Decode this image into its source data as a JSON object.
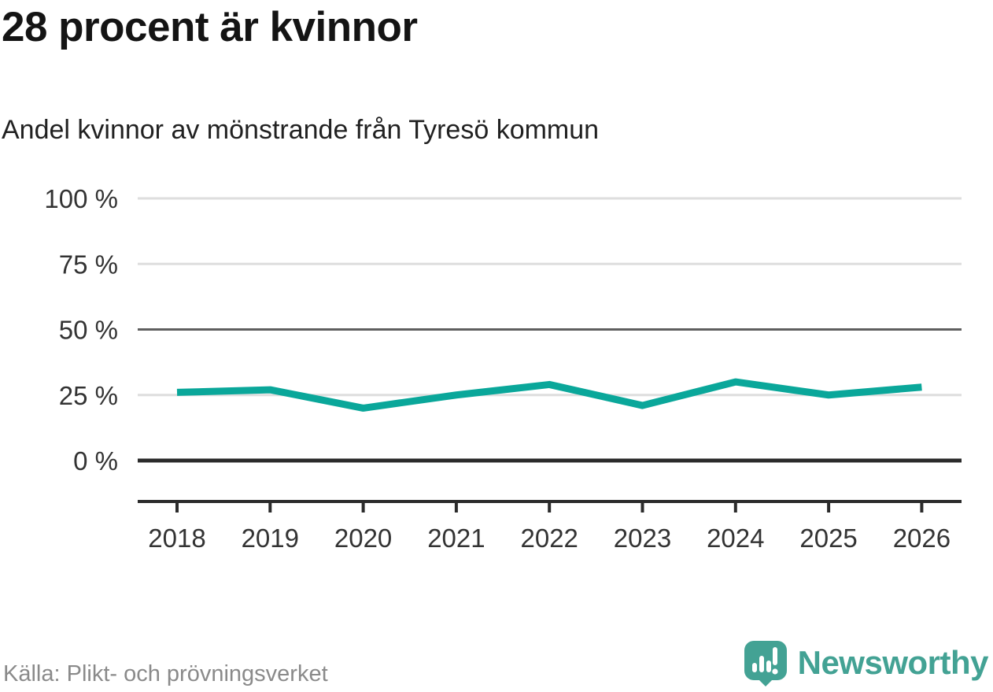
{
  "header": {
    "title": "28 procent är kvinnor",
    "subtitle": "Andel kvinnor av mönstrande från Tyresö kommun"
  },
  "footer": {
    "source": "Källa: Plikt- och prövningsverket",
    "brand": "Newsworthy",
    "logo_icon": "bar-chart-speech-bubble-icon"
  },
  "colors": {
    "line": "#0aa79a",
    "brand": "#43a294",
    "grid_light": "#dedede",
    "grid_mid": "#5f5f5f",
    "axis_dark": "#2b2b2b",
    "title_text": "#141414",
    "tick_text": "#333333",
    "muted_text": "#8a8a8a"
  },
  "chart_data": {
    "type": "line",
    "title": "28 procent är kvinnor",
    "subtitle": "Andel kvinnor av mönstrande från Tyresö kommun",
    "source": "Källa: Plikt- och prövningsverket",
    "x": [
      2018,
      2019,
      2020,
      2021,
      2022,
      2023,
      2024,
      2025,
      2026
    ],
    "series": [
      {
        "name": "Andel kvinnor av mönstrande",
        "color": "#0aa79a",
        "values": [
          26,
          27,
          20,
          25,
          29,
          21,
          30,
          25,
          28
        ]
      }
    ],
    "unit": "%",
    "ylim": [
      0,
      100
    ],
    "yticks": [
      {
        "value": 100,
        "label": "100 %"
      },
      {
        "value": 75,
        "label": "75 %"
      },
      {
        "value": 50,
        "label": "50 %"
      },
      {
        "value": 25,
        "label": "25 %"
      },
      {
        "value": 0,
        "label": "0 %"
      }
    ],
    "grid": true,
    "legend": false,
    "highlight_gridline": 50,
    "baseline_gridline": 0
  }
}
